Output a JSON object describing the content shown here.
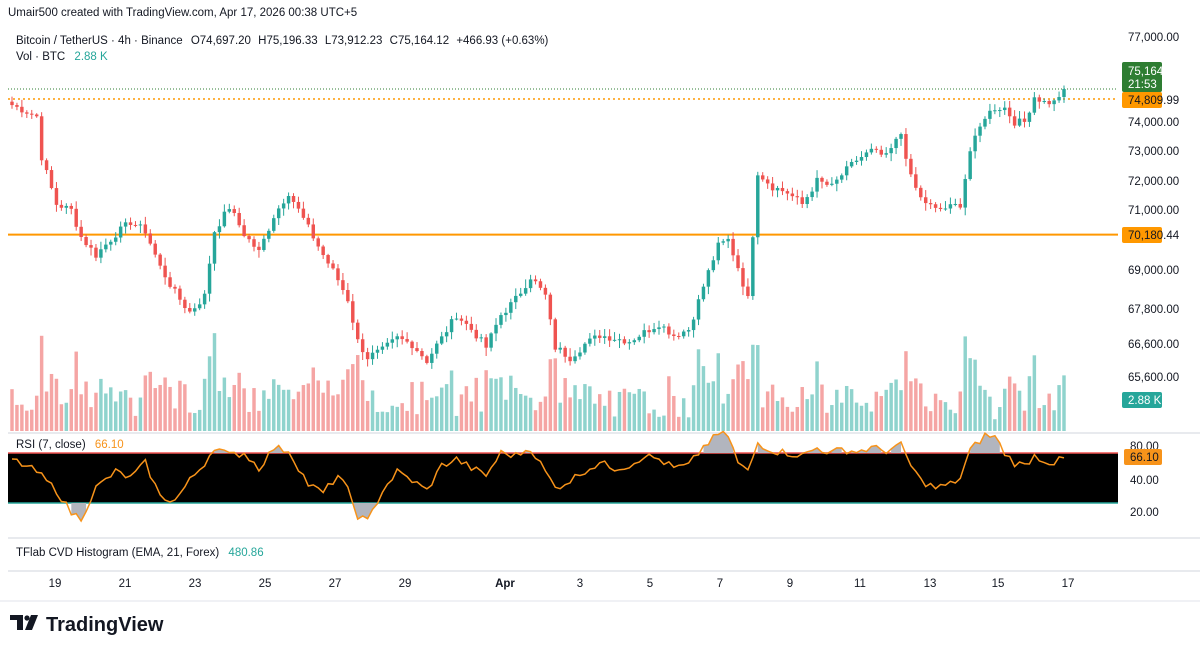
{
  "header": {
    "credit": "Umair500 created with TradingView.com, Apr 17, 2026 00:38 UTC+5"
  },
  "legend": {
    "symbol": "Bitcoin / TetherUS · 4h · Binance",
    "o_label": "O",
    "o_value": "74,697.20",
    "h_label": "H",
    "h_value": "75,196.33",
    "l_label": "L",
    "l_value": "73,912.23",
    "c_label": "C",
    "c_value": "75,164.12",
    "change": "+466.93 (+0.63%)",
    "vol_label": "Vol · BTC",
    "vol_value": "2.88 K"
  },
  "price_axis": {
    "ticks": [
      "77,000.00",
      "74,000.00",
      "73,000.00",
      "72,000.00",
      "71,000.00",
      "69,000.00",
      "67,800.00",
      "66,600.00",
      "65,600.00"
    ]
  },
  "price_labels": {
    "last_price": "75,164.12",
    "countdown": "21:53",
    "level_upper": "74,809.99",
    "level_lower": "70,180.44",
    "volume": "2.88 K"
  },
  "rsi": {
    "title": "RSI (7, close)",
    "value": "66.10",
    "ticks": [
      "80.00",
      "40.00",
      "20.00"
    ],
    "value_label": "66.10"
  },
  "cvd": {
    "title": "TFlab CVD Histogram (EMA, 21, Forex)",
    "value": "480.86"
  },
  "time_axis": {
    "labels": [
      "19",
      "21",
      "23",
      "25",
      "27",
      "29",
      "Apr",
      "3",
      "5",
      "7",
      "9",
      "11",
      "13",
      "15",
      "17"
    ]
  },
  "branding": {
    "name": "TradingView"
  },
  "colors": {
    "up": "#26a69a",
    "down": "#ef5350",
    "vol_up": "#8fd3cd",
    "vol_down": "#f5a5a4",
    "level": "#ff9800",
    "rsi_line": "#f7931a",
    "last_price": "#2e7d32"
  },
  "chart_data": {
    "type": "candlestick",
    "symbol": "Bitcoin / TetherUS",
    "interval": "4h",
    "price_anchors": [
      [
        0,
        74600
      ],
      [
        5,
        74200
      ],
      [
        6,
        72800
      ],
      [
        9,
        71200
      ],
      [
        12,
        71000
      ],
      [
        14,
        70100
      ],
      [
        17,
        69500
      ],
      [
        21,
        70200
      ],
      [
        24,
        70600
      ],
      [
        27,
        70300
      ],
      [
        30,
        69100
      ],
      [
        33,
        68300
      ],
      [
        36,
        67700
      ],
      [
        39,
        68200
      ],
      [
        41,
        70300
      ],
      [
        44,
        71100
      ],
      [
        47,
        70200
      ],
      [
        50,
        69600
      ],
      [
        53,
        70800
      ],
      [
        56,
        71600
      ],
      [
        60,
        70400
      ],
      [
        63,
        69500
      ],
      [
        66,
        68700
      ],
      [
        68,
        68100
      ],
      [
        70,
        66700
      ],
      [
        72,
        66200
      ],
      [
        75,
        66400
      ],
      [
        78,
        66800
      ],
      [
        81,
        66600
      ],
      [
        84,
        66100
      ],
      [
        87,
        66800
      ],
      [
        90,
        67600
      ],
      [
        93,
        67100
      ],
      [
        96,
        66500
      ],
      [
        99,
        67600
      ],
      [
        102,
        68100
      ],
      [
        105,
        68800
      ],
      [
        108,
        68200
      ],
      [
        110,
        66500
      ],
      [
        113,
        66200
      ],
      [
        116,
        66600
      ],
      [
        119,
        66900
      ],
      [
        122,
        66800
      ],
      [
        125,
        66700
      ],
      [
        128,
        67000
      ],
      [
        131,
        67300
      ],
      [
        134,
        66900
      ],
      [
        137,
        67100
      ],
      [
        140,
        68500
      ],
      [
        143,
        69800
      ],
      [
        145,
        70000
      ],
      [
        147,
        69100
      ],
      [
        149,
        68100
      ],
      [
        151,
        72300
      ],
      [
        154,
        71800
      ],
      [
        157,
        71600
      ],
      [
        160,
        71200
      ],
      [
        163,
        72000
      ],
      [
        166,
        71800
      ],
      [
        168,
        72200
      ],
      [
        171,
        72700
      ],
      [
        174,
        73000
      ],
      [
        177,
        72800
      ],
      [
        180,
        73600
      ],
      [
        182,
        72100
      ],
      [
        184,
        71400
      ],
      [
        187,
        71000
      ],
      [
        190,
        71100
      ],
      [
        192,
        71200
      ],
      [
        194,
        73000
      ],
      [
        197,
        74200
      ],
      [
        199,
        74500
      ],
      [
        201,
        74500
      ],
      [
        203,
        74000
      ],
      [
        205,
        74000
      ],
      [
        207,
        74900
      ],
      [
        209,
        74700
      ],
      [
        211,
        74700
      ],
      [
        213,
        75164
      ]
    ],
    "horizontal_levels": [
      74809.99,
      70180.44
    ],
    "last_price": 75164.12,
    "volume_last": "2.88 K",
    "rsi": {
      "period": 7,
      "last": 66.1,
      "upper_band": 70,
      "lower_band": 30,
      "anchors": [
        [
          0,
          65
        ],
        [
          5,
          55
        ],
        [
          9,
          40
        ],
        [
          12,
          22
        ],
        [
          14,
          18
        ],
        [
          17,
          42
        ],
        [
          21,
          55
        ],
        [
          24,
          50
        ],
        [
          27,
          62
        ],
        [
          30,
          35
        ],
        [
          33,
          32
        ],
        [
          36,
          48
        ],
        [
          39,
          62
        ],
        [
          41,
          75
        ],
        [
          44,
          68
        ],
        [
          47,
          70
        ],
        [
          50,
          58
        ],
        [
          53,
          74
        ],
        [
          56,
          72
        ],
        [
          60,
          45
        ],
        [
          63,
          38
        ],
        [
          66,
          52
        ],
        [
          68,
          40
        ],
        [
          70,
          20
        ],
        [
          72,
          15
        ],
        [
          75,
          40
        ],
        [
          78,
          55
        ],
        [
          81,
          48
        ],
        [
          84,
          40
        ],
        [
          87,
          60
        ],
        [
          90,
          65
        ],
        [
          93,
          58
        ],
        [
          96,
          52
        ],
        [
          99,
          70
        ],
        [
          102,
          68
        ],
        [
          105,
          74
        ],
        [
          108,
          55
        ],
        [
          110,
          42
        ],
        [
          113,
          48
        ],
        [
          116,
          56
        ],
        [
          119,
          62
        ],
        [
          122,
          58
        ],
        [
          125,
          60
        ],
        [
          128,
          68
        ],
        [
          131,
          65
        ],
        [
          134,
          58
        ],
        [
          137,
          60
        ],
        [
          140,
          75
        ],
        [
          143,
          85
        ],
        [
          145,
          84
        ],
        [
          147,
          62
        ],
        [
          149,
          55
        ],
        [
          151,
          78
        ],
        [
          154,
          72
        ],
        [
          157,
          70
        ],
        [
          160,
          68
        ],
        [
          163,
          74
        ],
        [
          166,
          70
        ],
        [
          168,
          73
        ],
        [
          171,
          71
        ],
        [
          174,
          74
        ],
        [
          177,
          72
        ],
        [
          180,
          76
        ],
        [
          182,
          60
        ],
        [
          184,
          48
        ],
        [
          187,
          42
        ],
        [
          190,
          45
        ],
        [
          192,
          50
        ],
        [
          194,
          72
        ],
        [
          197,
          84
        ],
        [
          199,
          83
        ],
        [
          201,
          70
        ],
        [
          203,
          62
        ],
        [
          205,
          60
        ],
        [
          207,
          68
        ],
        [
          209,
          64
        ],
        [
          211,
          62
        ],
        [
          213,
          66.1
        ]
      ]
    },
    "cvd": {
      "title": "TFlab CVD Histogram (EMA, 21, Forex)",
      "last": 480.86
    },
    "x_labels": [
      "19",
      "21",
      "23",
      "25",
      "27",
      "29",
      "Apr",
      "3",
      "5",
      "7",
      "9",
      "11",
      "13",
      "15",
      "17"
    ]
  }
}
